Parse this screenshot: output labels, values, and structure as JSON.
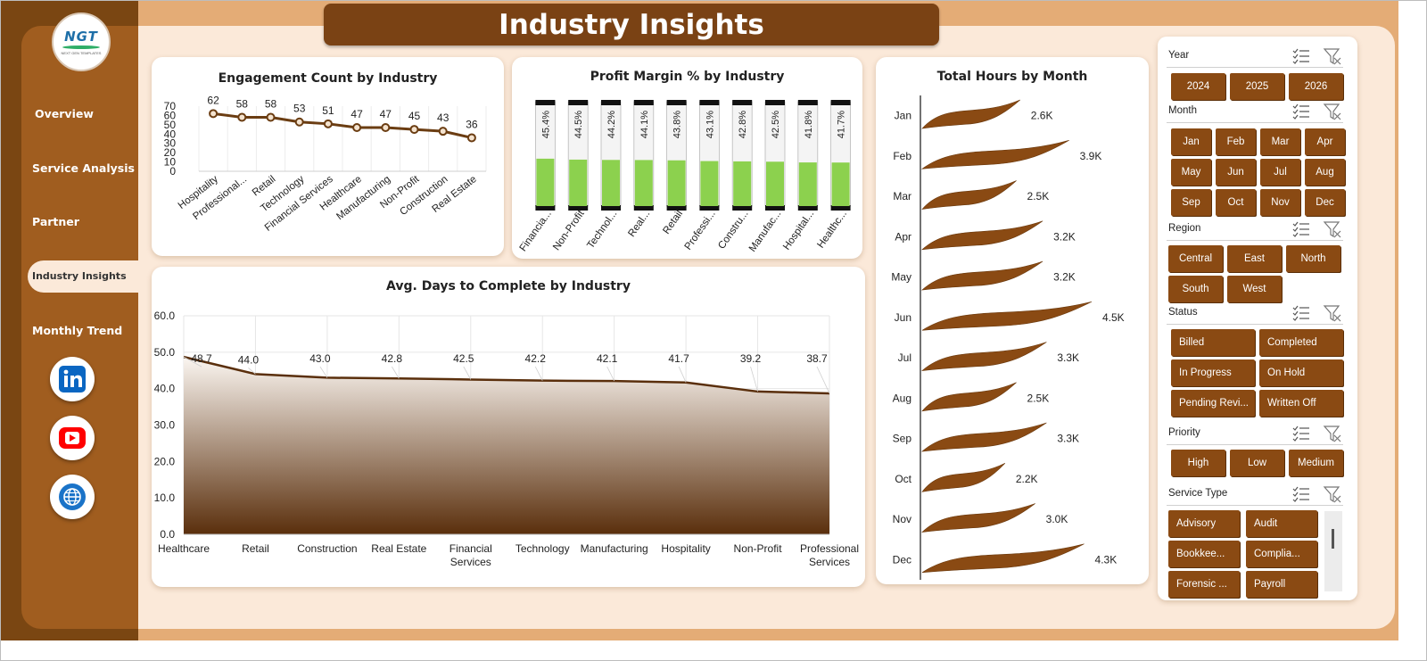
{
  "title": "Industry Insights",
  "logo": {
    "name": "NGT",
    "tagline": "NEXT GEN TEMPLATES"
  },
  "nav": [
    "Overview",
    "Service Analysis",
    "Partner",
    "Industry Insights",
    "Monthly Trend"
  ],
  "nav_active": "Industry Insights",
  "social": [
    "linkedin-icon",
    "youtube-icon",
    "globe-icon"
  ],
  "colors": {
    "brown": "#7a4214",
    "button": "#8a4a13",
    "green": "#8cd14e",
    "bg": "#e4ac76"
  },
  "engagement_chart": {
    "title": "Engagement  Count  by Industry",
    "type": "line",
    "categories": [
      "Hospitality",
      "Professional...",
      "Retail",
      "Technology",
      "Financial Services",
      "Healthcare",
      "Manufacturing",
      "Non-Profit",
      "Construction",
      "Real Estate"
    ],
    "values": [
      62,
      58,
      58,
      53,
      51,
      47,
      47,
      45,
      43,
      36
    ],
    "yticks": [
      "70",
      "60",
      "50",
      "40",
      "30",
      "20",
      "10",
      "0"
    ],
    "ylim": [
      0,
      70
    ]
  },
  "profit_chart": {
    "title": "Profit Margin % by Industry",
    "type": "bar",
    "categories": [
      "Financia...",
      "Non-Profit",
      "Technol...",
      "Real...",
      "Retail",
      "Professi...",
      "Constru...",
      "Manufac...",
      "Hospital...",
      "Healthc..."
    ],
    "values": [
      45.4,
      44.5,
      44.2,
      44.1,
      43.8,
      43.1,
      42.8,
      42.5,
      41.8,
      41.7
    ],
    "labels": [
      "45.4%",
      "44.5%",
      "44.2%",
      "44.1%",
      "43.8%",
      "43.1%",
      "42.8%",
      "42.5%",
      "41.8%",
      "41.7%"
    ],
    "ylim": [
      0,
      100
    ]
  },
  "days_chart": {
    "title": "Avg. Days to Complete by Industry",
    "type": "area",
    "categories": [
      [
        "Healthcare"
      ],
      [
        "Retail"
      ],
      [
        "Construction"
      ],
      [
        "Real Estate"
      ],
      [
        "Financial",
        "Services"
      ],
      [
        "Technology"
      ],
      [
        "Manufacturing"
      ],
      [
        "Hospitality"
      ],
      [
        "Non-Profit"
      ],
      [
        "Professional",
        "Services"
      ]
    ],
    "values": [
      48.7,
      44.0,
      43.0,
      42.8,
      42.5,
      42.2,
      42.1,
      41.7,
      39.2,
      38.7
    ],
    "labels": [
      "48.7",
      "44.0",
      "43.0",
      "42.8",
      "42.5",
      "42.2",
      "42.1",
      "41.7",
      "39.2",
      "38.7"
    ],
    "yticks": [
      "60.0",
      "50.0",
      "40.0",
      "30.0",
      "20.0",
      "10.0",
      "0.0"
    ],
    "ylim": [
      0,
      60
    ]
  },
  "hours_chart": {
    "title": "Total Hours by Month",
    "type": "bar",
    "categories": [
      "Jan",
      "Feb",
      "Mar",
      "Apr",
      "May",
      "Jun",
      "Jul",
      "Aug",
      "Sep",
      "Oct",
      "Nov",
      "Dec"
    ],
    "values": [
      2.6,
      3.9,
      2.5,
      3.2,
      3.2,
      4.5,
      3.3,
      2.5,
      3.3,
      2.2,
      3.0,
      4.3
    ],
    "labels": [
      "2.6K",
      "3.9K",
      "2.5K",
      "3.2K",
      "3.2K",
      "4.5K",
      "3.3K",
      "2.5K",
      "3.3K",
      "2.2K",
      "3.0K",
      "4.3K"
    ]
  },
  "chart_data": [
    {
      "type": "line",
      "title": "Engagement  Count  by Industry",
      "categories": [
        "Hospitality",
        "Professional...",
        "Retail",
        "Technology",
        "Financial Services",
        "Healthcare",
        "Manufacturing",
        "Non-Profit",
        "Construction",
        "Real Estate"
      ],
      "values": [
        62,
        58,
        58,
        53,
        51,
        47,
        47,
        45,
        43,
        36
      ],
      "ylim": [
        0,
        70
      ]
    },
    {
      "type": "bar",
      "title": "Profit Margin % by Industry",
      "categories": [
        "Financia...",
        "Non-Profit",
        "Technol...",
        "Real...",
        "Retail",
        "Professi...",
        "Constru...",
        "Manufac...",
        "Hospital...",
        "Healthc..."
      ],
      "values": [
        45.4,
        44.5,
        44.2,
        44.1,
        43.8,
        43.1,
        42.8,
        42.5,
        41.8,
        41.7
      ]
    },
    {
      "type": "area",
      "title": "Avg. Days to Complete by Industry",
      "categories": [
        "Healthcare",
        "Retail",
        "Construction",
        "Real Estate",
        "Financial Services",
        "Technology",
        "Manufacturing",
        "Hospitality",
        "Non-Profit",
        "Professional Services"
      ],
      "values": [
        48.7,
        44.0,
        43.0,
        42.8,
        42.5,
        42.2,
        42.1,
        41.7,
        39.2,
        38.7
      ],
      "ylim": [
        0,
        60
      ]
    },
    {
      "type": "bar",
      "title": "Total Hours by Month",
      "categories": [
        "Jan",
        "Feb",
        "Mar",
        "Apr",
        "May",
        "Jun",
        "Jul",
        "Aug",
        "Sep",
        "Oct",
        "Nov",
        "Dec"
      ],
      "values": [
        2.6,
        3.9,
        2.5,
        3.2,
        3.2,
        4.5,
        3.3,
        2.5,
        3.3,
        2.2,
        3.0,
        4.3
      ],
      "unit": "K"
    }
  ],
  "slicers": {
    "year": {
      "label": "Year",
      "options": [
        "2024",
        "2025",
        "2026"
      ]
    },
    "month": {
      "label": "Month",
      "options": [
        "Jan",
        "Feb",
        "Mar",
        "Apr",
        "May",
        "Jun",
        "Jul",
        "Aug",
        "Sep",
        "Oct",
        "Nov",
        "Dec"
      ]
    },
    "region": {
      "label": "Region",
      "options": [
        "Central",
        "East",
        "North",
        "South",
        "West"
      ]
    },
    "status": {
      "label": "Status",
      "options": [
        "Billed",
        "Completed",
        "In Progress",
        "On Hold",
        "Pending Revi...",
        "Written Off"
      ]
    },
    "priority": {
      "label": "Priority",
      "options": [
        "High",
        "Low",
        "Medium"
      ]
    },
    "service_type": {
      "label": "Service Type",
      "options": [
        "Advisory",
        "Audit",
        "Bookkee...",
        "Complia...",
        "Forensic ...",
        "Payroll"
      ]
    }
  }
}
